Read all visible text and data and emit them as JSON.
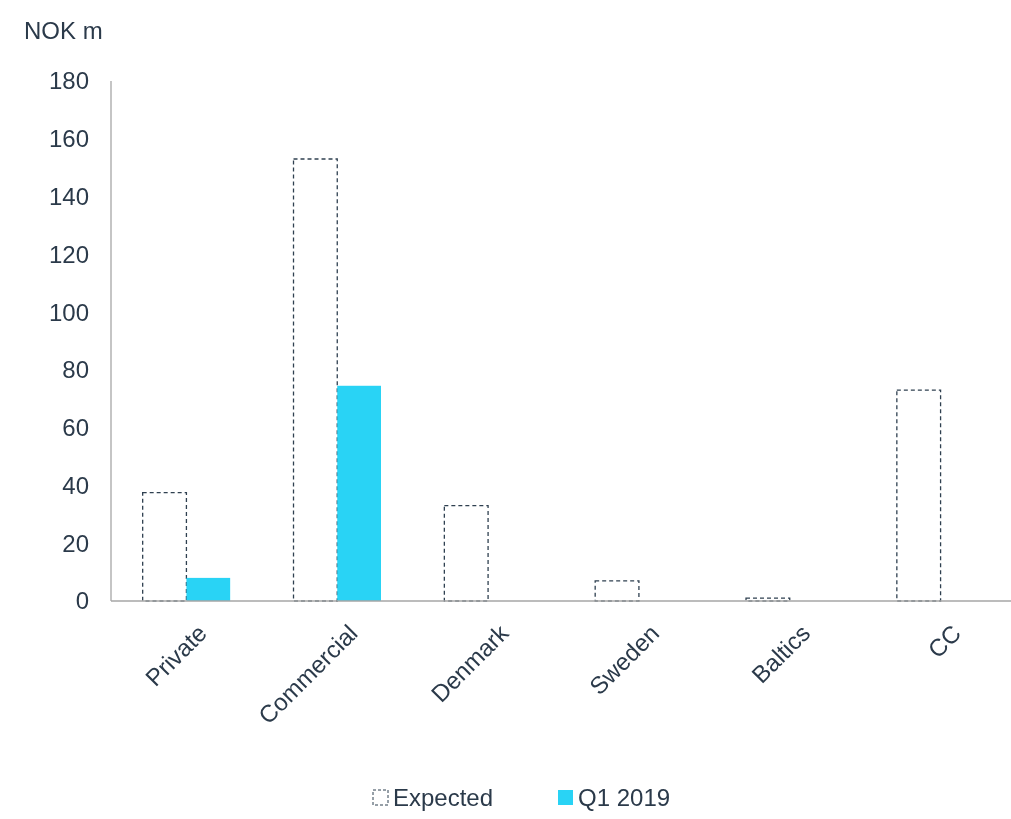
{
  "chart_data": {
    "type": "bar",
    "ylabel": "NOK m",
    "categories": [
      "Private",
      "Commercial",
      "Denmark",
      "Sweden",
      "Baltics",
      "CC"
    ],
    "series": [
      {
        "name": "Expected",
        "color": "#ffffff",
        "line_style": "dashed",
        "values": [
          37.5,
          153,
          33,
          7,
          1,
          73
        ]
      },
      {
        "name": "Q1 2019",
        "color": "#29d3f5",
        "values": [
          8,
          74.5,
          null,
          null,
          null,
          null
        ]
      }
    ],
    "ylim": [
      0,
      180
    ],
    "yticks": [
      0,
      20,
      40,
      60,
      80,
      100,
      120,
      140,
      160,
      180
    ],
    "grid": false,
    "legend": "bottom"
  }
}
